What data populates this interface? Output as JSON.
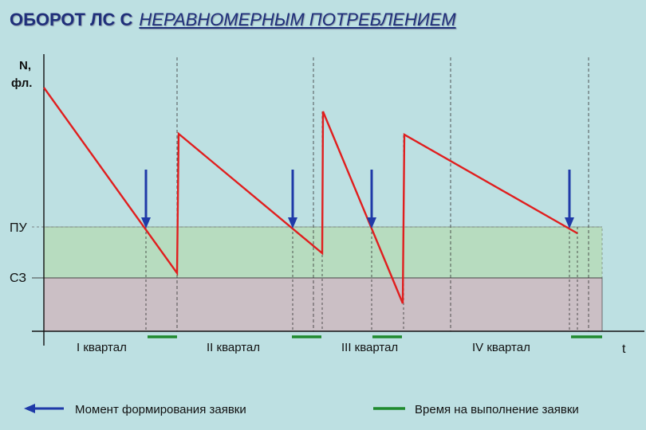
{
  "title": {
    "part1": "ОБОРОТ ЛС С",
    "part2": "НЕРАВНОМЕРНЫМ ПОТРЕБЛЕНИЕМ"
  },
  "y_axis": {
    "label_line1": "N,",
    "label_line2": "фл."
  },
  "levels": {
    "pu": "ПУ",
    "sz": "СЗ"
  },
  "x_axis": {
    "label": "t",
    "quarters": [
      "I квартал",
      "II квартал",
      "III квартал",
      "IV квартал"
    ]
  },
  "legend": {
    "order_moment": "Момент формирования заявки",
    "lead_time": "Время на выполнение заявки"
  },
  "colors": {
    "background": "#bde0e2",
    "stock_line": "#e01e1e",
    "order_arrow": "#1f3aa8",
    "lead_bar": "#1f8a2e",
    "pu_zone": "#b7dcbf",
    "sz_zone": "#cbbfc5"
  }
}
